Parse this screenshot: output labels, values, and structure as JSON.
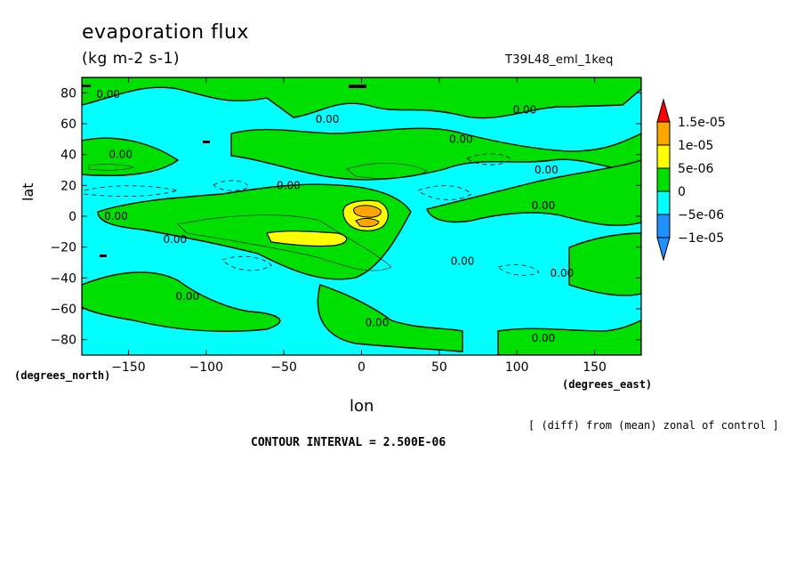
{
  "header": {
    "title": "evaporation flux",
    "units": "(kg m-2 s-1)",
    "run_name": "T39L48_eml_1keq"
  },
  "axes": {
    "ylabel": "lat",
    "yunit": "(degrees_north)",
    "xlabel": "lon",
    "xunit": "(degrees_east)"
  },
  "footer": {
    "note": "[ (diff) from (mean) zonal of control ]",
    "contour_interval": "CONTOUR INTERVAL = 2.500E-06"
  },
  "colors": {
    "neg_1e5": "#1e90ff",
    "neg_5e6": "#00ffff",
    "zero": "#00e000",
    "pos_5e6": "#ffff00",
    "pos_1e5": "#ffa500",
    "pos_15e5": "#ff0000"
  },
  "chart_data": {
    "type": "contour",
    "xlim": [
      -180,
      180
    ],
    "ylim": [
      -90,
      90
    ],
    "x_ticks": [
      -150,
      -100,
      -50,
      0,
      50,
      100,
      150
    ],
    "x_tick_labels": [
      "−150",
      "−100",
      "−50",
      "0",
      "50",
      "100",
      "150"
    ],
    "y_ticks": [
      -80,
      -60,
      -40,
      -20,
      0,
      20,
      40,
      60,
      80
    ],
    "y_tick_labels": [
      "−80",
      "−60",
      "−40",
      "−20",
      "0",
      "20",
      "40",
      "60",
      "80"
    ],
    "contour_label": "0.00",
    "contour_label_positions": [
      {
        "lon": -163,
        "lat": 79
      },
      {
        "lon": -155,
        "lat": 40
      },
      {
        "lon": -158,
        "lat": 0
      },
      {
        "lon": -120,
        "lat": -15
      },
      {
        "lon": -112,
        "lat": -52
      },
      {
        "lon": -22,
        "lat": 63
      },
      {
        "lon": -47,
        "lat": 20
      },
      {
        "lon": 10,
        "lat": -69
      },
      {
        "lon": 65,
        "lat": -29
      },
      {
        "lon": 64,
        "lat": 50
      },
      {
        "lon": 105,
        "lat": 69
      },
      {
        "lon": 119,
        "lat": 30
      },
      {
        "lon": 117,
        "lat": 7
      },
      {
        "lon": 129,
        "lat": -37
      },
      {
        "lon": 117,
        "lat": -79
      }
    ],
    "colorbar": {
      "levels": [
        "1.5e-05",
        "1e-05",
        "5e-06",
        "0",
        "−5e-06",
        "−1e-05"
      ]
    }
  }
}
